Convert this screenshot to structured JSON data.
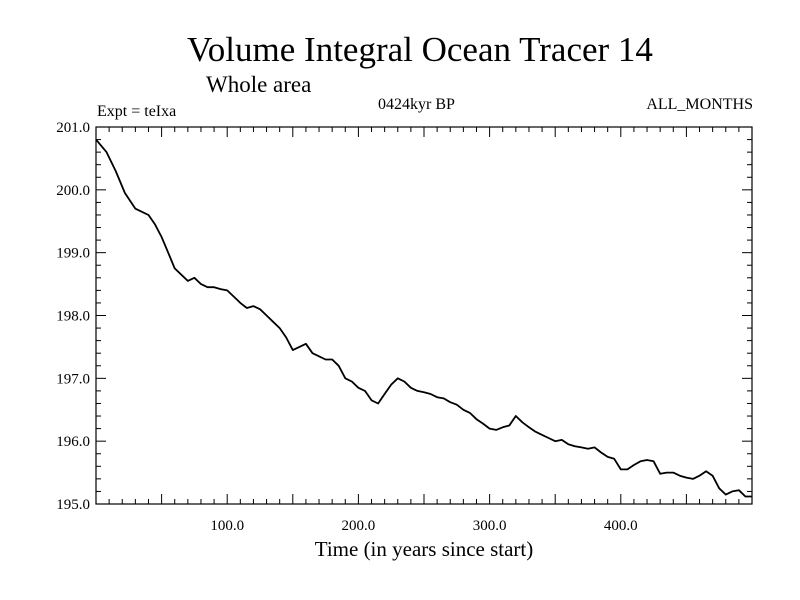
{
  "chart": {
    "title": "Volume Integral Ocean Tracer 14",
    "subtitle": "Whole area",
    "left_note": "Expt = teIxa",
    "center_note": "0424kyr BP",
    "right_note": "ALL_MONTHS",
    "xlabel": "Time (in years since start)"
  },
  "chart_data": {
    "type": "line",
    "title": "Volume Integral Ocean Tracer 14",
    "subtitle": "Whole area",
    "xlabel": "Time (in years since start)",
    "ylabel": "",
    "xlim": [
      0,
      500
    ],
    "ylim": [
      195.0,
      201.0
    ],
    "x_ticks": [
      100,
      200,
      300,
      400
    ],
    "x_tick_labels": [
      "100.0",
      "200.0",
      "300.0",
      "400.0"
    ],
    "y_ticks": [
      195,
      196,
      197,
      198,
      199,
      200,
      201
    ],
    "y_tick_labels": [
      "195.0",
      "196.0",
      "197.0",
      "198.0",
      "199.0",
      "200.0",
      "201.0"
    ],
    "grid": false,
    "line_color": "#000000",
    "series": [
      {
        "x": [
          0,
          8,
          15,
          22,
          30,
          35,
          40,
          45,
          50,
          55,
          60,
          65,
          70,
          75,
          80,
          85,
          90,
          95,
          100,
          105,
          110,
          115,
          120,
          125,
          130,
          135,
          140,
          145,
          150,
          155,
          160,
          165,
          170,
          175,
          180,
          185,
          190,
          195,
          200,
          205,
          210,
          215,
          220,
          225,
          230,
          235,
          240,
          245,
          250,
          255,
          260,
          265,
          270,
          275,
          280,
          285,
          290,
          295,
          300,
          305,
          310,
          315,
          320,
          325,
          330,
          335,
          340,
          345,
          350,
          355,
          360,
          365,
          370,
          375,
          380,
          385,
          390,
          395,
          400,
          405,
          410,
          415,
          420,
          425,
          430,
          435,
          440,
          445,
          450,
          455,
          460,
          465,
          470,
          475,
          480,
          485,
          490,
          495,
          500
        ],
        "y": [
          200.8,
          200.6,
          200.3,
          199.95,
          199.7,
          199.65,
          199.6,
          199.45,
          199.25,
          199.0,
          198.75,
          198.65,
          198.55,
          198.6,
          198.5,
          198.45,
          198.45,
          198.42,
          198.4,
          198.3,
          198.2,
          198.12,
          198.15,
          198.1,
          198.0,
          197.9,
          197.8,
          197.65,
          197.45,
          197.5,
          197.55,
          197.4,
          197.35,
          197.3,
          197.3,
          197.2,
          197.0,
          196.95,
          196.85,
          196.8,
          196.65,
          196.6,
          196.75,
          196.9,
          197.0,
          196.95,
          196.85,
          196.8,
          196.78,
          196.75,
          196.7,
          196.68,
          196.62,
          196.58,
          196.5,
          196.45,
          196.35,
          196.28,
          196.2,
          196.18,
          196.22,
          196.25,
          196.4,
          196.3,
          196.22,
          196.15,
          196.1,
          196.05,
          196.0,
          196.02,
          195.95,
          195.92,
          195.9,
          195.88,
          195.9,
          195.82,
          195.75,
          195.72,
          195.55,
          195.55,
          195.62,
          195.68,
          195.7,
          195.68,
          195.48,
          195.5,
          195.5,
          195.45,
          195.42,
          195.4,
          195.45,
          195.52,
          195.45,
          195.25,
          195.15,
          195.2,
          195.22,
          195.12,
          195.12
        ]
      }
    ]
  }
}
